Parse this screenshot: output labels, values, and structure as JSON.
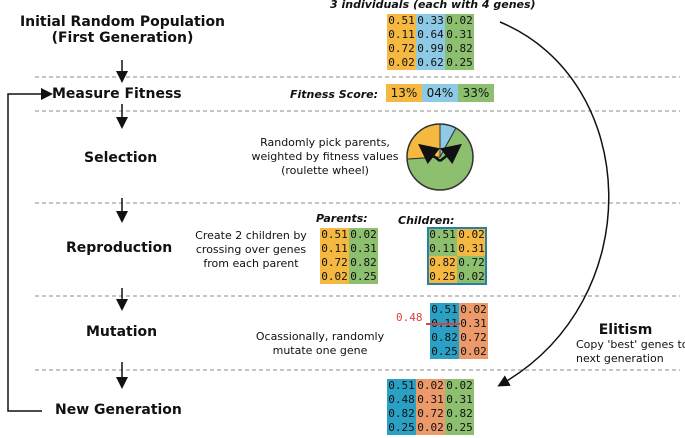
{
  "colors": {
    "orange": "#f5b942",
    "blue": "#8ec9e6",
    "green": "#8cc06f",
    "salmon": "#ec9a6a",
    "teal": "#2aa1c4",
    "red": "#e04040"
  },
  "stages": {
    "initial": {
      "line1": "Initial Random Population",
      "line2": "(First Generation)"
    },
    "measure": "Measure Fitness",
    "selection": "Selection",
    "reproduction": "Reproduction",
    "mutation": "Mutation",
    "new_gen": "New Generation"
  },
  "population_header": "3 individuals (each with 4 genes)",
  "population": [
    [
      "0.51",
      "0.33",
      "0.02"
    ],
    [
      "0.11",
      "0.64",
      "0.31"
    ],
    [
      "0.72",
      "0.99",
      "0.82"
    ],
    [
      "0.02",
      "0.62",
      "0.25"
    ]
  ],
  "fitness": {
    "label": "Fitness Score:",
    "scores": [
      "13%",
      "04%",
      "33%"
    ]
  },
  "selection_desc": [
    "Randomly pick parents,",
    "weighted by fitness values",
    "(roulette wheel)"
  ],
  "roulette": {
    "slices": [
      13,
      4,
      33
    ]
  },
  "reproduction_desc": [
    "Create 2 children by",
    "crossing over genes",
    "from each parent"
  ],
  "parents_label": "Parents:",
  "children_label": "Children:",
  "parents": [
    [
      "0.51",
      "0.02"
    ],
    [
      "0.11",
      "0.31"
    ],
    [
      "0.72",
      "0.82"
    ],
    [
      "0.02",
      "0.25"
    ]
  ],
  "children": [
    [
      "0.51",
      "0.02"
    ],
    [
      "0.11",
      "0.31"
    ],
    [
      "0.82",
      "0.72"
    ],
    [
      "0.25",
      "0.02"
    ]
  ],
  "mutation_desc": [
    "Ocassionally, randomly",
    "mutate one gene"
  ],
  "mutation_old": "0.48",
  "mutation_grid": [
    [
      "0.51",
      "0.02"
    ],
    [
      "0.11",
      "0.31"
    ],
    [
      "0.82",
      "0.72"
    ],
    [
      "0.25",
      "0.02"
    ]
  ],
  "elitism": {
    "title": "Elitism",
    "line1": "Copy 'best' genes to",
    "line2": "next generation"
  },
  "new_generation": [
    [
      "0.51",
      "0.02",
      "0.02"
    ],
    [
      "0.48",
      "0.31",
      "0.31"
    ],
    [
      "0.82",
      "0.72",
      "0.82"
    ],
    [
      "0.25",
      "0.02",
      "0.25"
    ]
  ]
}
